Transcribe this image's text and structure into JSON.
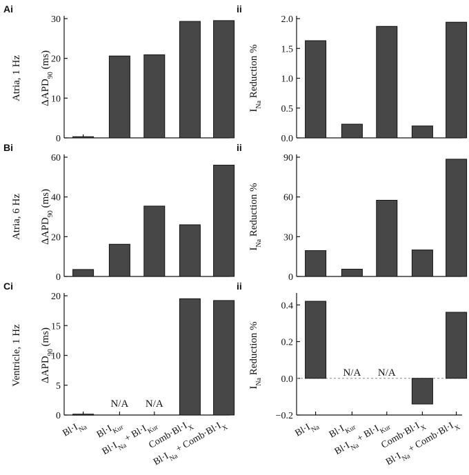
{
  "chart_data": [
    {
      "id": "Ai",
      "panel_label": "Ai",
      "type": "bar",
      "row_label": "Atria, 1 Hz",
      "ylabel": {
        "prefix": "ΔAPD",
        "sub": "90",
        "suffix": " (ms)"
      },
      "ylim": [
        0,
        30
      ],
      "yticks": [
        0,
        10,
        20,
        30
      ],
      "values": [
        0.3,
        20.6,
        20.9,
        29.3,
        29.5
      ],
      "na": [
        false,
        false,
        false,
        false,
        false
      ]
    },
    {
      "id": "Aii",
      "panel_label": "ii",
      "type": "bar",
      "ylabel": {
        "prefix": "I",
        "sub": "Na",
        "suffix": "  Reduction %"
      },
      "ylim": [
        0,
        2.0
      ],
      "yticks": [
        "0.0",
        "0.5",
        "1.0",
        "1.5",
        "2.0"
      ],
      "values": [
        1.63,
        0.23,
        1.87,
        0.2,
        1.94
      ],
      "na": [
        false,
        false,
        false,
        false,
        false
      ]
    },
    {
      "id": "Bi",
      "panel_label": "Bi",
      "type": "bar",
      "row_label": "Atria, 6 Hz",
      "ylabel": {
        "prefix": "ΔAPD",
        "sub": "90",
        "suffix": " (ms)"
      },
      "ylim": [
        0,
        60
      ],
      "yticks": [
        0,
        20,
        40,
        60
      ],
      "values": [
        3.5,
        16.2,
        35.4,
        26.0,
        56.0
      ],
      "na": [
        false,
        false,
        false,
        false,
        false
      ]
    },
    {
      "id": "Bii",
      "panel_label": "ii",
      "type": "bar",
      "ylabel": {
        "prefix": "I",
        "sub": "Na",
        "suffix": "  Reduction %"
      },
      "ylim": [
        0,
        90
      ],
      "yticks": [
        0,
        30,
        60,
        90
      ],
      "values": [
        19.5,
        5.5,
        57.5,
        20.0,
        88.5
      ],
      "na": [
        false,
        false,
        false,
        false,
        false
      ]
    },
    {
      "id": "Ci",
      "panel_label": "Ci",
      "type": "bar",
      "row_label": "Ventricle, 1 Hz",
      "ylabel": {
        "prefix": "ΔAPD",
        "sub": "90",
        "suffix": " (ms)"
      },
      "ylim": [
        0,
        20
      ],
      "yticks": [
        0,
        5,
        10,
        15,
        20
      ],
      "values": [
        0.15,
        null,
        null,
        19.5,
        19.2
      ],
      "na": [
        false,
        true,
        true,
        false,
        false
      ],
      "na_text": "N/A"
    },
    {
      "id": "Cii",
      "panel_label": "ii",
      "type": "bar",
      "ylabel": {
        "prefix": "I",
        "sub": "Na",
        "suffix": "  Reduction %"
      },
      "ylim": [
        -0.2,
        0.45
      ],
      "yticks": [
        "−0.2",
        "0.0",
        "0.2",
        "0.4"
      ],
      "ytick_values": [
        -0.2,
        0,
        0.2,
        0.4
      ],
      "zero_line": true,
      "values": [
        0.42,
        null,
        null,
        -0.14,
        0.36
      ],
      "na": [
        false,
        true,
        true,
        false,
        false
      ],
      "na_text": "N/A"
    }
  ],
  "categories": [
    {
      "parts": [
        [
          "Bl·I",
          ""
        ],
        [
          "Na",
          "sub"
        ]
      ]
    },
    {
      "parts": [
        [
          "Bl·I",
          ""
        ],
        [
          "Kur",
          "sub"
        ]
      ]
    },
    {
      "parts": [
        [
          "Bl·I",
          ""
        ],
        [
          "Na",
          "sub"
        ],
        [
          " + Bl·I",
          ""
        ],
        [
          "Kur",
          "sub"
        ]
      ]
    },
    {
      "parts": [
        [
          "Comb·Bl·I",
          ""
        ],
        [
          "X",
          "sub"
        ]
      ]
    },
    {
      "parts": [
        [
          "Bl·I",
          ""
        ],
        [
          "Na",
          "sub"
        ],
        [
          " + Comb·Bl·I",
          ""
        ],
        [
          "X",
          "sub"
        ]
      ]
    }
  ]
}
